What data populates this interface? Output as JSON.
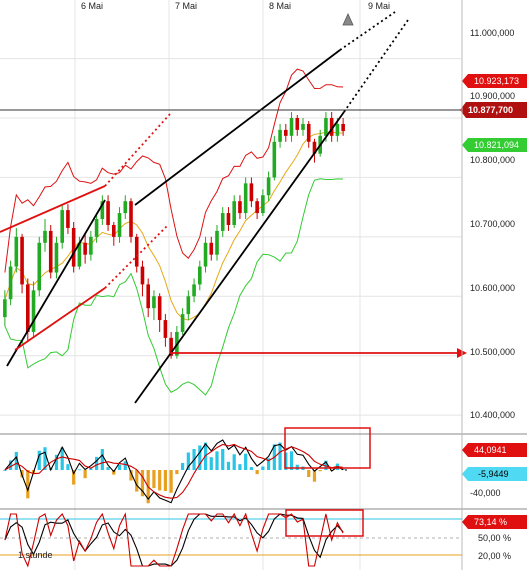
{
  "chart_data": [
    {
      "type": "candlestick",
      "x_labels": [
        "6 Mai",
        "7 Mai",
        "8 Mai",
        "9 Mai"
      ],
      "y_ticks": [
        "11.000,000",
        "10.900,000",
        "10.800,000",
        "10.700,000",
        "10.600,000",
        "10.500,000",
        "10.400,000"
      ],
      "ylim": [
        10375,
        11075
      ],
      "price_tags": {
        "upper_band": "10.923,173",
        "current": "10.877,700",
        "lower_band": "10.821,094"
      },
      "horizontal_level": 10500,
      "current_level": 10877.7,
      "candles": [
        [
          10565,
          10595,
          10550,
          10610
        ],
        [
          10595,
          10650,
          10585,
          10660
        ],
        [
          10650,
          10700,
          10640,
          10715
        ],
        [
          10700,
          10620,
          10605,
          10705
        ],
        [
          10620,
          10540,
          10525,
          10630
        ],
        [
          10540,
          10610,
          10530,
          10625
        ],
        [
          10610,
          10690,
          10600,
          10700
        ],
        [
          10690,
          10710,
          10675,
          10730
        ],
        [
          10710,
          10640,
          10630,
          10720
        ],
        [
          10640,
          10690,
          10630,
          10700
        ],
        [
          10690,
          10745,
          10680,
          10755
        ],
        [
          10745,
          10715,
          10705,
          10755
        ],
        [
          10715,
          10650,
          10640,
          10725
        ],
        [
          10650,
          10690,
          10645,
          10700
        ],
        [
          10690,
          10670,
          10655,
          10705
        ],
        [
          10670,
          10700,
          10660,
          10710
        ],
        [
          10700,
          10730,
          10690,
          10740
        ],
        [
          10730,
          10760,
          10720,
          10770
        ],
        [
          10760,
          10720,
          10710,
          10770
        ],
        [
          10720,
          10700,
          10685,
          10725
        ],
        [
          10700,
          10740,
          10690,
          10750
        ],
        [
          10740,
          10760,
          10730,
          10770
        ],
        [
          10760,
          10700,
          10690,
          10765
        ],
        [
          10700,
          10650,
          10640,
          10705
        ],
        [
          10650,
          10620,
          10600,
          10660
        ],
        [
          10620,
          10580,
          10565,
          10630
        ],
        [
          10580,
          10600,
          10560,
          10610
        ],
        [
          10600,
          10560,
          10540,
          10605
        ],
        [
          10560,
          10530,
          10515,
          10570
        ],
        [
          10530,
          10500,
          10495,
          10540
        ],
        [
          10500,
          10540,
          10495,
          10550
        ],
        [
          10540,
          10570,
          10535,
          10580
        ],
        [
          10570,
          10600,
          10560,
          10610
        ],
        [
          10600,
          10620,
          10590,
          10630
        ],
        [
          10620,
          10650,
          10610,
          10660
        ],
        [
          10650,
          10690,
          10640,
          10700
        ],
        [
          10690,
          10670,
          10660,
          10700
        ],
        [
          10670,
          10710,
          10660,
          10720
        ],
        [
          10710,
          10740,
          10700,
          10750
        ],
        [
          10740,
          10720,
          10710,
          10750
        ],
        [
          10720,
          10760,
          10715,
          10770
        ],
        [
          10760,
          10740,
          10730,
          10770
        ],
        [
          10740,
          10790,
          10730,
          10800
        ],
        [
          10790,
          10760,
          10750,
          10800
        ],
        [
          10760,
          10740,
          10730,
          10765
        ],
        [
          10740,
          10770,
          10735,
          10780
        ],
        [
          10770,
          10800,
          10760,
          10810
        ],
        [
          10800,
          10860,
          10795,
          10870
        ],
        [
          10860,
          10880,
          10850,
          10890
        ],
        [
          10880,
          10870,
          10860,
          10890
        ],
        [
          10870,
          10900,
          10860,
          10910
        ],
        [
          10900,
          10880,
          10870,
          10905
        ],
        [
          10880,
          10890,
          10870,
          10900
        ],
        [
          10890,
          10860,
          10850,
          10895
        ],
        [
          10860,
          10840,
          10825,
          10865
        ],
        [
          10840,
          10870,
          10835,
          10880
        ],
        [
          10870,
          10900,
          10860,
          10910
        ],
        [
          10900,
          10870,
          10860,
          10910
        ],
        [
          10870,
          10890,
          10860,
          10900
        ],
        [
          10890,
          10878,
          10870,
          10900
        ]
      ]
    },
    {
      "type": "histogram",
      "indicator": "MACD",
      "value_tags": [
        "44,0941",
        "-5,9449"
      ],
      "y_ticks": [
        "-40,000"
      ]
    },
    {
      "type": "line",
      "indicator": "Stochastic",
      "value_tag": "73,14 %",
      "y_ticks": [
        "50,00 %",
        "20,00 %"
      ],
      "label": "1 stunde"
    }
  ],
  "colors": {
    "up": "#22aa22",
    "down": "#cc0000",
    "band_upper": "#dd1111",
    "band_lower": "#33cc33",
    "band_mid": "#e6a817",
    "trend": "#000000",
    "level": "#e01010",
    "macd_pos": "#29c5e6",
    "macd_neg": "#e8a020",
    "stoch_k": "#cc0000",
    "stoch_d": "#000000",
    "stoch_hline": "#29c5e6"
  }
}
